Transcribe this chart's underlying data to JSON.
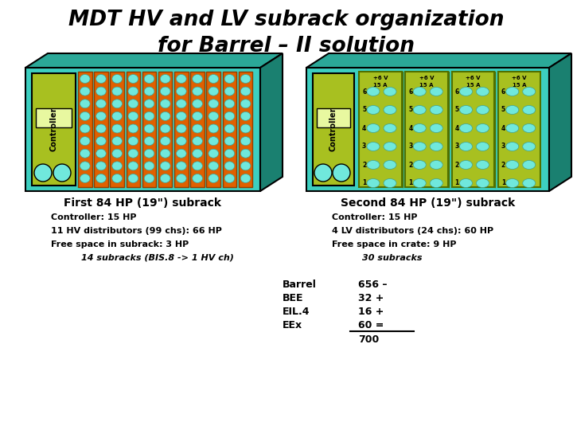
{
  "title_line1": "MDT HV and LV subrack organization",
  "title_line2": "for Barrel – II solution",
  "title_fontsize": 19,
  "bg_color": "#ffffff",
  "teal": "#3DCFC0",
  "teal_top": "#2BA898",
  "teal_side": "#1A8070",
  "olive": "#A8C020",
  "olive_dark": "#507000",
  "orange": "#E06000",
  "orange_dark": "#904000",
  "cyan_c": "#70E8DC",
  "white_rect": "#E8F888",
  "left_label": "First 84 HP (19\") subrack",
  "right_label": "Second 84 HP (19\") subrack",
  "left_info": [
    "Controller: 15 HP",
    "11 HV distributors (99 chs): 66 HP",
    "Free space in subrack: 3 HP",
    "14 subracks (BIS.8 -> 1 HV ch)"
  ],
  "right_info": [
    "Controller: 15 HP",
    "4 LV distributors (24 chs): 60 HP",
    "Free space in crate: 9 HP",
    "30 subracks"
  ],
  "table_items": [
    "Barrel",
    "BEE",
    "EIL.4",
    "EEx"
  ],
  "table_values": [
    "656 –",
    "32 +",
    "16 +",
    "60 ="
  ],
  "table_total": "700",
  "n_hv": 11,
  "n_lv": 4,
  "n_hv_rows": 9,
  "n_lv_rows": 6
}
